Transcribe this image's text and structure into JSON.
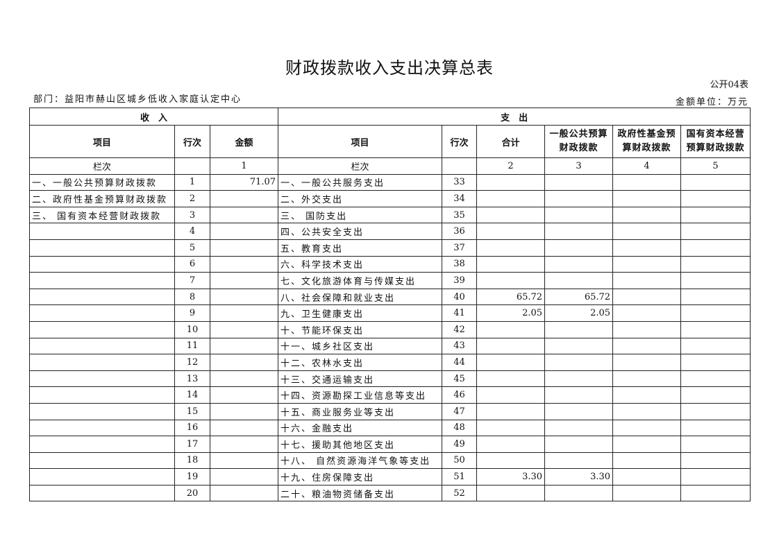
{
  "title": "财政拨款收入支出决算总表",
  "form_no": "公开04表",
  "department": "部门：益阳市赫山区城乡低收入家庭认定中心",
  "unit": "金额单位：万元",
  "headers": {
    "income": "收　入",
    "expense": "支　出",
    "item": "项目",
    "line": "行次",
    "amount": "金额",
    "item2": "项目",
    "line2": "行次",
    "total": "合计",
    "general": "一般公共预算财政拨款",
    "gov_fund": "政府性基金预算财政拨款",
    "state_capital": "国有资本经营预算财政拨款",
    "col_label": "栏次",
    "col_label2": "栏次",
    "c1": "1",
    "c2": "2",
    "c3": "3",
    "c4": "4",
    "c5": "5"
  },
  "rows": [
    {
      "in_item": "一、一般公共预算财政拨款",
      "in_line": "1",
      "in_amt": "71.07",
      "out_item": "一、一般公共服务支出",
      "out_line": "33",
      "total": "",
      "general": "",
      "fund": "",
      "capital": ""
    },
    {
      "in_item": "二、政府性基金预算财政拨款",
      "in_line": "2",
      "in_amt": "",
      "out_item": "二、外交支出",
      "out_line": "34",
      "total": "",
      "general": "",
      "fund": "",
      "capital": ""
    },
    {
      "in_item": "三、 国有资本经营财政拨款",
      "in_line": "3",
      "in_amt": "",
      "out_item": "三、 国防支出",
      "out_line": "35",
      "total": "",
      "general": "",
      "fund": "",
      "capital": ""
    },
    {
      "in_item": "",
      "in_line": "4",
      "in_amt": "",
      "out_item": "四、公共安全支出",
      "out_line": "36",
      "total": "",
      "general": "",
      "fund": "",
      "capital": ""
    },
    {
      "in_item": "",
      "in_line": "5",
      "in_amt": "",
      "out_item": "五、教育支出",
      "out_line": "37",
      "total": "",
      "general": "",
      "fund": "",
      "capital": ""
    },
    {
      "in_item": "",
      "in_line": "6",
      "in_amt": "",
      "out_item": "六、科学技术支出",
      "out_line": "38",
      "total": "",
      "general": "",
      "fund": "",
      "capital": ""
    },
    {
      "in_item": "",
      "in_line": "7",
      "in_amt": "",
      "out_item": "七、文化旅游体育与传媒支出",
      "out_line": "39",
      "total": "",
      "general": "",
      "fund": "",
      "capital": ""
    },
    {
      "in_item": "",
      "in_line": "8",
      "in_amt": "",
      "out_item": "八、社会保障和就业支出",
      "out_line": "40",
      "total": "65.72",
      "general": "65.72",
      "fund": "",
      "capital": ""
    },
    {
      "in_item": "",
      "in_line": "9",
      "in_amt": "",
      "out_item": "九、卫生健康支出",
      "out_line": "41",
      "total": "2.05",
      "general": "2.05",
      "fund": "",
      "capital": ""
    },
    {
      "in_item": "",
      "in_line": "10",
      "in_amt": "",
      "out_item": "十、节能环保支出",
      "out_line": "42",
      "total": "",
      "general": "",
      "fund": "",
      "capital": ""
    },
    {
      "in_item": "",
      "in_line": "11",
      "in_amt": "",
      "out_item": "十一、城乡社区支出",
      "out_line": "43",
      "total": "",
      "general": "",
      "fund": "",
      "capital": ""
    },
    {
      "in_item": "",
      "in_line": "12",
      "in_amt": "",
      "out_item": "十二、农林水支出",
      "out_line": "44",
      "total": "",
      "general": "",
      "fund": "",
      "capital": ""
    },
    {
      "in_item": "",
      "in_line": "13",
      "in_amt": "",
      "out_item": "十三、交通运输支出",
      "out_line": "45",
      "total": "",
      "general": "",
      "fund": "",
      "capital": ""
    },
    {
      "in_item": "",
      "in_line": "14",
      "in_amt": "",
      "out_item": "十四、资源勘探工业信息等支出",
      "out_line": "46",
      "total": "",
      "general": "",
      "fund": "",
      "capital": ""
    },
    {
      "in_item": "",
      "in_line": "15",
      "in_amt": "",
      "out_item": "十五、商业服务业等支出",
      "out_line": "47",
      "total": "",
      "general": "",
      "fund": "",
      "capital": ""
    },
    {
      "in_item": "",
      "in_line": "16",
      "in_amt": "",
      "out_item": "十六、金融支出",
      "out_line": "48",
      "total": "",
      "general": "",
      "fund": "",
      "capital": ""
    },
    {
      "in_item": "",
      "in_line": "17",
      "in_amt": "",
      "out_item": "十七、援助其他地区支出",
      "out_line": "49",
      "total": "",
      "general": "",
      "fund": "",
      "capital": ""
    },
    {
      "in_item": "",
      "in_line": "18",
      "in_amt": "",
      "out_item": "十八、 自然资源海洋气象等支出",
      "out_line": "50",
      "total": "",
      "general": "",
      "fund": "",
      "capital": ""
    },
    {
      "in_item": "",
      "in_line": "19",
      "in_amt": "",
      "out_item": "十九、住房保障支出",
      "out_line": "51",
      "total": "3.30",
      "general": "3.30",
      "fund": "",
      "capital": ""
    },
    {
      "in_item": "",
      "in_line": "20",
      "in_amt": "",
      "out_item": "二十、粮油物资储备支出",
      "out_line": "52",
      "total": "",
      "general": "",
      "fund": "",
      "capital": ""
    }
  ]
}
